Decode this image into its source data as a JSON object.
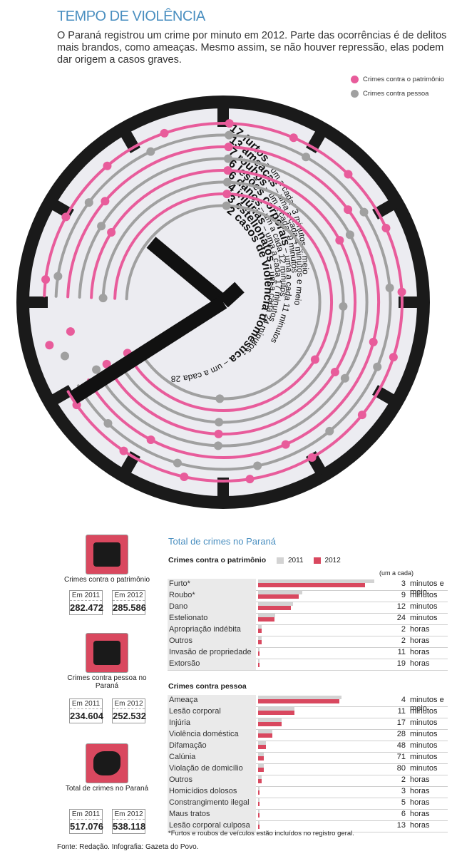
{
  "header": {
    "title": "TEMPO DE VIOLÊNCIA",
    "intro": "O Paraná registrou um crime por minuto em 2012. Parte das ocorrências é de delitos mais brandos, como ameaças. Mesmo assim, se não houver repressão, elas podem dar origem a casos graves."
  },
  "legend": {
    "patrimonio": "Crimes contra o patrimônio",
    "pessoa": "Crimes contra pessoa",
    "pink": "#e85c9b",
    "gray": "#a0a0a0"
  },
  "clock_rings": [
    {
      "count": 17,
      "bold": "17 furtos",
      "rest": " – um a cada* 3 minutos e meio",
      "type": "patrimonio"
    },
    {
      "count": 13,
      "bold": "13 ameaças",
      "rest": " – uma a cada 4 minutos e meio",
      "type": "pessoa"
    },
    {
      "count": 7,
      "bold": "7 roubos",
      "rest": " – um a cada* 9 minutos",
      "type": "patrimonio"
    },
    {
      "count": 6,
      "bold": "6 lesões corporais",
      "rest": " – uma a cada 11 minutos",
      "type": "pessoa"
    },
    {
      "count": 6,
      "bold": "6 danos",
      "rest": " – um a cada 12 minutos",
      "type": "patrimonio"
    },
    {
      "count": 4,
      "bold": "4 injúrias",
      "rest": " – uma a cada 17 minutos",
      "type": "pessoa"
    },
    {
      "count": 3,
      "bold": "3 estelionatos",
      "rest": " – um a cada 24 minutos",
      "type": "patrimonio"
    },
    {
      "count": 2,
      "bold": "2 casos de violência doméstica",
      "rest": " – um a cada 28 minutos",
      "type": "pessoa"
    }
  ],
  "panels": [
    {
      "label": "Crimes contra o patrimônio",
      "y2011": "Em 2011",
      "v2011": "282.472",
      "y2012": "Em 2012",
      "v2012": "285.586"
    },
    {
      "label": "Crimes contra pessoa no Paraná",
      "y2011": "Em 2011",
      "v2011": "234.604",
      "y2012": "Em 2012",
      "v2012": "252.532"
    },
    {
      "label": "Total de crimes no Paraná",
      "y2011": "Em 2011",
      "v2011": "517.076",
      "y2012": "Em 2012",
      "v2012": "538.118"
    }
  ],
  "chart_data": {
    "type": "bar",
    "title": "Total de crimes no Paraná",
    "legend": [
      "2011",
      "2012"
    ],
    "rate_header": "(um a cada)",
    "footnote": "*Furtos e roubos de veículos estão incluídos no registro geral.",
    "groups": [
      {
        "name": "Crimes contra o patrimônio",
        "rows": [
          {
            "label": "Furto*",
            "v2011": 100,
            "v2012": 92,
            "num": "3",
            "unit": "minutos e meio"
          },
          {
            "label": "Roubo*",
            "v2011": 38,
            "v2012": 35,
            "num": "9",
            "unit": "minutos"
          },
          {
            "label": "Dano",
            "v2011": 30,
            "v2012": 28,
            "num": "12",
            "unit": "minutos"
          },
          {
            "label": "Estelionato",
            "v2011": 15,
            "v2012": 14,
            "num": "24",
            "unit": "minutos"
          },
          {
            "label": "Apropriação indébita",
            "v2011": 3,
            "v2012": 3,
            "num": "2",
            "unit": "horas"
          },
          {
            "label": "Outros",
            "v2011": 3,
            "v2012": 3,
            "num": "2",
            "unit": "horas"
          },
          {
            "label": "Invasão de propriedade",
            "v2011": 1,
            "v2012": 1,
            "num": "11",
            "unit": "horas"
          },
          {
            "label": "Extorsão",
            "v2011": 1,
            "v2012": 1,
            "num": "19",
            "unit": "horas"
          }
        ]
      },
      {
        "name": "Crimes contra pessoa",
        "rows": [
          {
            "label": "Ameaça",
            "v2011": 72,
            "v2012": 70,
            "num": "4",
            "unit": "minutos e meio"
          },
          {
            "label": "Lesão corporal",
            "v2011": 31,
            "v2012": 31,
            "num": "11",
            "unit": "minutos"
          },
          {
            "label": "Injúria",
            "v2011": 20,
            "v2012": 20,
            "num": "17",
            "unit": "minutos"
          },
          {
            "label": "Violência doméstica",
            "v2011": 12,
            "v2012": 12,
            "num": "28",
            "unit": "minutos"
          },
          {
            "label": "Difamação",
            "v2011": 7,
            "v2012": 7,
            "num": "48",
            "unit": "minutos"
          },
          {
            "label": "Calúnia",
            "v2011": 5,
            "v2012": 5,
            "num": "71",
            "unit": "minutos"
          },
          {
            "label": "Violação de domicílio",
            "v2011": 5,
            "v2012": 5,
            "num": "80",
            "unit": "minutos"
          },
          {
            "label": "Outros",
            "v2011": 3,
            "v2012": 3,
            "num": "2",
            "unit": "horas"
          },
          {
            "label": "Homicídios dolosos",
            "v2011": 1,
            "v2012": 1,
            "num": "3",
            "unit": "horas"
          },
          {
            "label": "Constrangimento ilegal",
            "v2011": 1,
            "v2012": 1,
            "num": "5",
            "unit": "horas"
          },
          {
            "label": "Maus tratos",
            "v2011": 1,
            "v2012": 1,
            "num": "6",
            "unit": "horas"
          },
          {
            "label": "Lesão corporal culposa",
            "v2011": 1,
            "v2012": 1,
            "num": "13",
            "unit": "horas"
          }
        ]
      }
    ]
  },
  "footer": "Fonte: Redação. Infografia: Gazeta do Povo."
}
